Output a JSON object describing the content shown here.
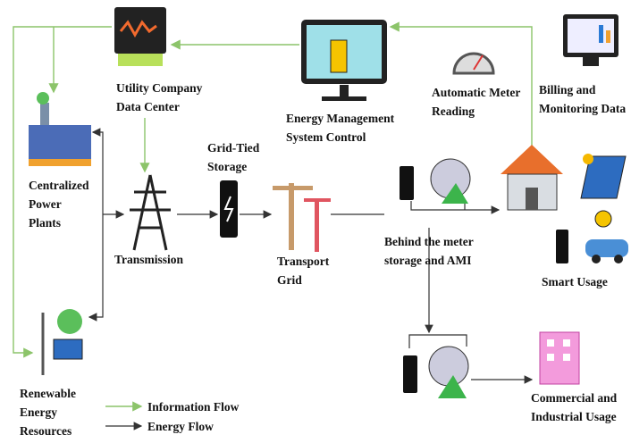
{
  "nodes": [
    {
      "label": [
        "Utility Company",
        "Data Center"
      ]
    },
    {
      "label": [
        "Energy Management",
        "System Control"
      ]
    },
    {
      "label": [
        "Automatic Meter",
        "Reading"
      ]
    },
    {
      "label": [
        "Billing and",
        "Monitoring Data"
      ]
    },
    {
      "label": [
        "Centralized",
        "Power",
        "Plants"
      ]
    },
    {
      "label": [
        "Grid-Tied",
        "Storage"
      ]
    },
    {
      "label": [
        "Transmission"
      ]
    },
    {
      "label": [
        "Transport",
        "Grid"
      ]
    },
    {
      "label": [
        "Behind the meter",
        "storage and AMI"
      ]
    },
    {
      "label": [
        "Smart Usage"
      ]
    },
    {
      "label": [
        "Renewable",
        "Energy",
        "Resources"
      ]
    },
    {
      "label": [
        "Commercial and",
        "Industrial Usage"
      ]
    }
  ],
  "legend": [
    {
      "label": "Information Flow"
    },
    {
      "label": "Energy Flow"
    }
  ]
}
